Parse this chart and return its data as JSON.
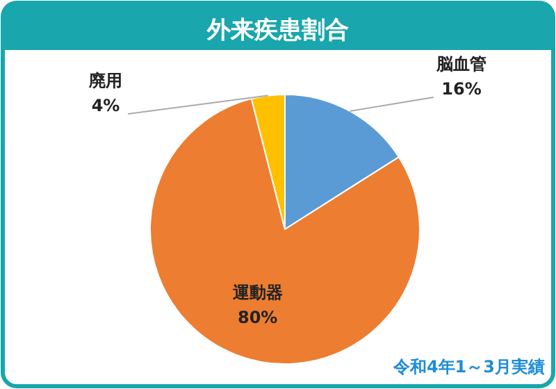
{
  "chart_data": {
    "type": "pie",
    "title": "外来疾患割合",
    "categories": [
      "脳血管",
      "運動器",
      "廃用"
    ],
    "values": [
      16,
      80,
      4
    ],
    "value_labels": [
      "16%",
      "80%",
      "4%"
    ],
    "colors": [
      "#5b9bd5",
      "#ed7d31",
      "#ffc000"
    ],
    "annotations": [
      "令和4年1～3月実績"
    ]
  }
}
